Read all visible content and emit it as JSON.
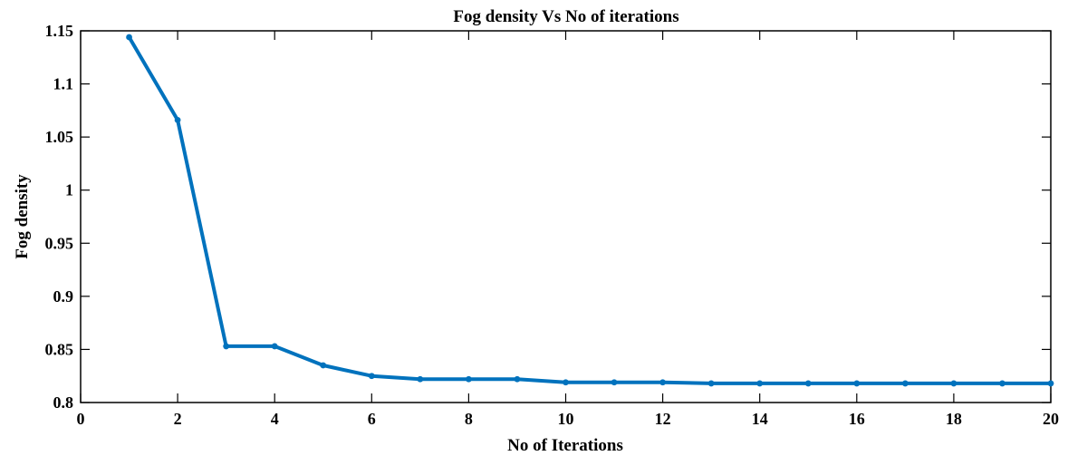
{
  "chart_data": {
    "type": "line",
    "title": "Fog density  Vs  No of iterations",
    "xlabel": "No of Iterations",
    "ylabel": "Fog density",
    "xlim": [
      0,
      20
    ],
    "ylim": [
      0.8,
      1.15
    ],
    "x_ticks": [
      "0",
      "2",
      "4",
      "6",
      "8",
      "10",
      "12",
      "14",
      "16",
      "18",
      "20"
    ],
    "y_ticks": [
      "0.8",
      "0.85",
      "0.9",
      "0.95",
      "1",
      "1.05",
      "1.1",
      "1.15"
    ],
    "grid": false,
    "legend": "none",
    "line_color": "#0072BD",
    "series": [
      {
        "x": [
          1,
          2,
          3,
          4,
          5,
          6,
          7,
          8,
          9,
          10,
          11,
          12,
          13,
          14,
          15,
          16,
          17,
          18,
          19,
          20
        ],
        "values": [
          1.144,
          1.066,
          0.853,
          0.853,
          0.835,
          0.825,
          0.822,
          0.822,
          0.822,
          0.819,
          0.819,
          0.819,
          0.818,
          0.818,
          0.818,
          0.818,
          0.818,
          0.818,
          0.818,
          0.818
        ]
      }
    ]
  }
}
